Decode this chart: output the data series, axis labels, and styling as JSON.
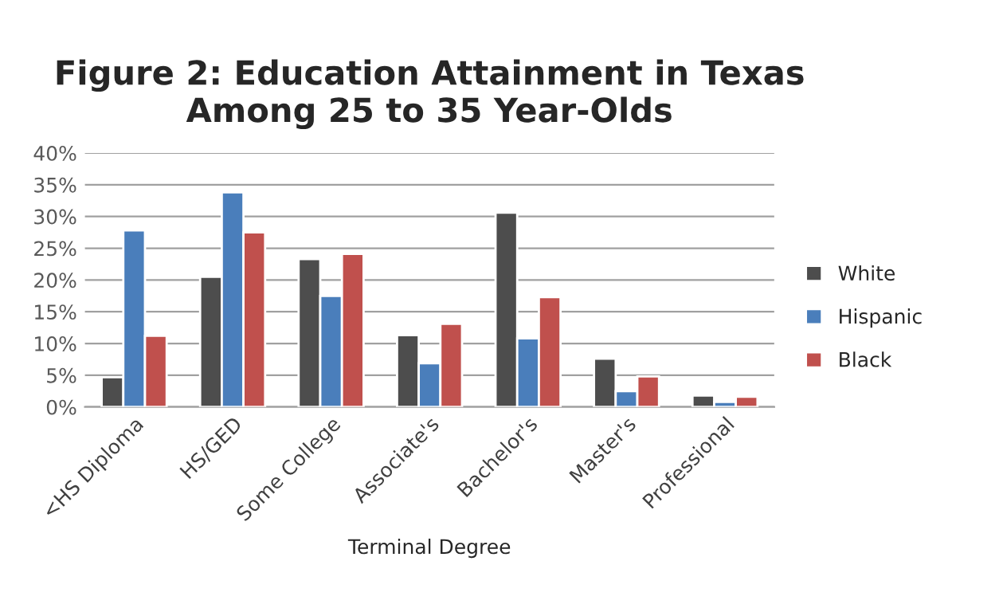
{
  "chart_data": {
    "type": "bar",
    "title": "Figure 2: Education Attainment in Texas\nAmong 25 to 35 Year-Olds",
    "xlabel": "Terminal Degree",
    "categories": [
      "<HS Diploma",
      "HS/GED",
      "Some College",
      "Associate's",
      "Bachelor's",
      "Master's",
      "Professional"
    ],
    "series": [
      {
        "name": "White",
        "color": "#4d4d4d",
        "values": [
          4.7,
          20.5,
          23.3,
          11.3,
          30.6,
          7.6,
          1.8
        ]
      },
      {
        "name": "Hispanic",
        "color": "#4a7ebb",
        "values": [
          27.8,
          33.8,
          17.5,
          6.9,
          10.8,
          2.5,
          0.8
        ]
      },
      {
        "name": "Black",
        "color": "#c0504d",
        "values": [
          11.2,
          27.5,
          24.1,
          13.1,
          17.3,
          4.8,
          1.6
        ]
      }
    ],
    "ylim": [
      0,
      40
    ],
    "yticks": [
      {
        "value": 0,
        "label": "0%"
      },
      {
        "value": 5,
        "label": "5%"
      },
      {
        "value": 10,
        "label": "10%"
      },
      {
        "value": 15,
        "label": "15%"
      },
      {
        "value": 20,
        "label": "20%"
      },
      {
        "value": 25,
        "label": "25%"
      },
      {
        "value": 30,
        "label": "30%"
      },
      {
        "value": 35,
        "label": "35%"
      },
      {
        "value": 40,
        "label": "40%"
      }
    ],
    "grid": "y",
    "legend": "right"
  }
}
